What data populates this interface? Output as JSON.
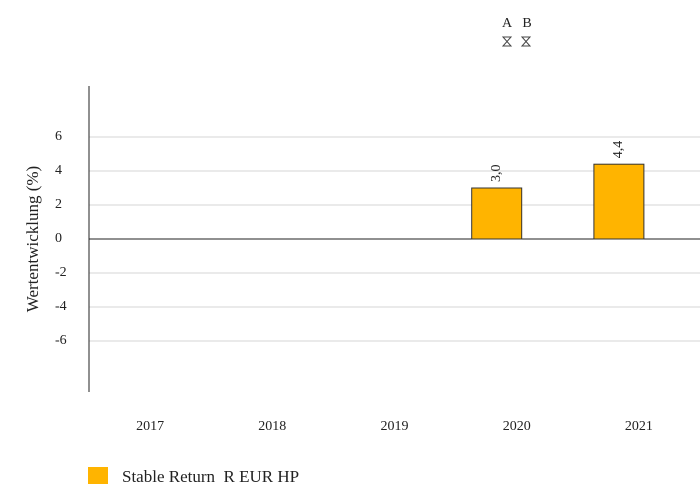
{
  "chart_data": {
    "type": "bar",
    "annotations": [
      "A",
      "B"
    ],
    "y_label": "Wertentwicklung (%)",
    "categories": [
      "2017",
      "2018",
      "2019",
      "2020",
      "2021"
    ],
    "series": [
      {
        "name": "Stable Return  R EUR HP",
        "color": "#ffb400",
        "values": [
          null,
          null,
          null,
          3.0,
          4.4
        ],
        "value_labels": [
          null,
          null,
          null,
          "3,0",
          "4,4"
        ]
      }
    ],
    "ylim": [
      -9,
      9
    ],
    "yticks": [
      -6,
      -4,
      -2,
      0,
      2,
      4,
      6
    ],
    "grid": true
  }
}
